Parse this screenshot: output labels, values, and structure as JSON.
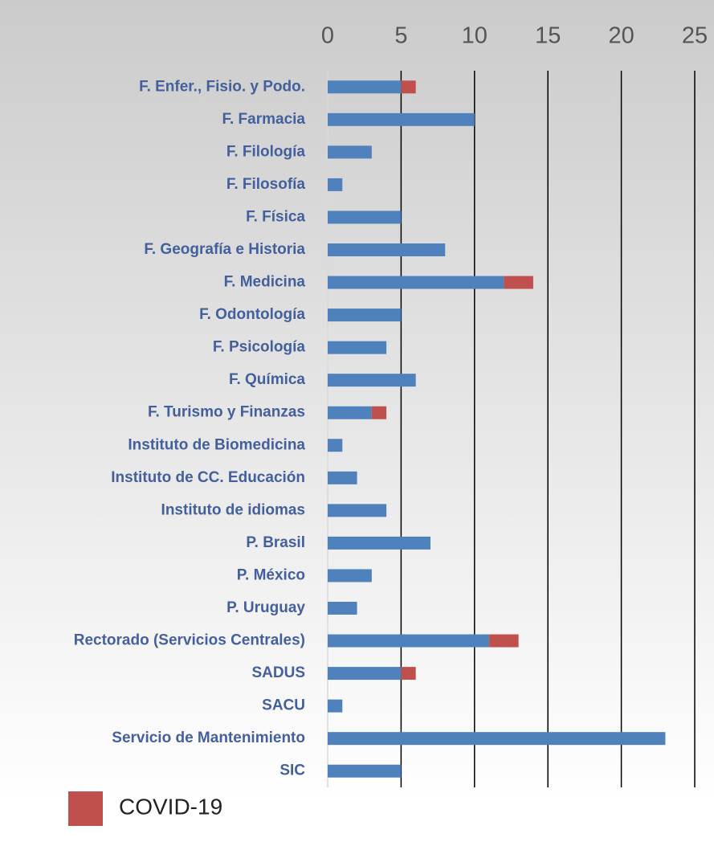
{
  "chart_data": {
    "type": "stacked_barh",
    "categories": [
      "F. Enfer., Fisio. y Podo.",
      "F. Farmacia",
      "F. Filología",
      "F. Filosofía",
      "F. Física",
      "F. Geografía e Historia",
      "F. Medicina",
      "F. Odontología",
      "F. Psicología",
      "F. Química",
      "F. Turismo y Finanzas",
      "Instituto de Biomedicina",
      "Instituto de CC. Educación",
      "Instituto de idiomas",
      "P. Brasil",
      "P. México",
      "P. Uruguay",
      "Rectorado (Servicios Centrales)",
      "SADUS",
      "SACU",
      "Servicio de Mantenimiento",
      "SIC"
    ],
    "series": [
      {
        "color": "#4f81bd",
        "values": [
          5,
          10,
          3,
          1,
          5,
          8,
          12,
          5,
          4,
          6,
          3,
          1,
          2,
          4,
          7,
          3,
          2,
          11,
          5,
          1,
          23,
          5
        ]
      },
      {
        "name": "COVID-19",
        "color": "#c0504d",
        "values": [
          1,
          0,
          0,
          0,
          0,
          0,
          2,
          0,
          0,
          0,
          1,
          0,
          0,
          0,
          0,
          0,
          0,
          2,
          1,
          0,
          0,
          0
        ]
      }
    ],
    "xlim": [
      0,
      25
    ],
    "xticks": [
      0,
      5,
      10,
      15,
      20,
      25
    ],
    "grid": true,
    "legend": "bottom"
  }
}
